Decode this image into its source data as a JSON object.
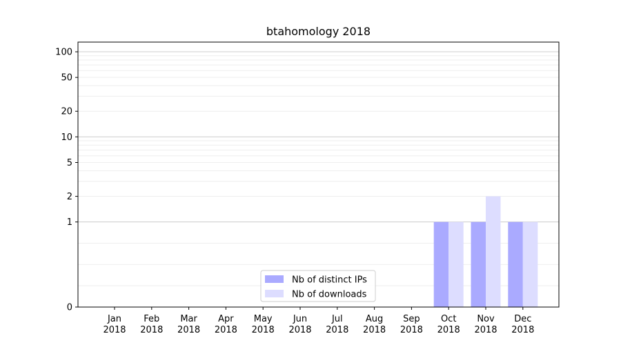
{
  "chart_data": {
    "type": "bar",
    "title": "btahomology 2018",
    "xlabel": "",
    "ylabel": "",
    "yscale": "symlog",
    "ylim": [
      0,
      130
    ],
    "yticks": [
      0,
      1,
      2,
      5,
      10,
      20,
      50,
      100
    ],
    "categories": [
      {
        "month": "Jan",
        "year": "2018"
      },
      {
        "month": "Feb",
        "year": "2018"
      },
      {
        "month": "Mar",
        "year": "2018"
      },
      {
        "month": "Apr",
        "year": "2018"
      },
      {
        "month": "May",
        "year": "2018"
      },
      {
        "month": "Jun",
        "year": "2018"
      },
      {
        "month": "Jul",
        "year": "2018"
      },
      {
        "month": "Aug",
        "year": "2018"
      },
      {
        "month": "Sep",
        "year": "2018"
      },
      {
        "month": "Oct",
        "year": "2018"
      },
      {
        "month": "Nov",
        "year": "2018"
      },
      {
        "month": "Dec",
        "year": "2018"
      }
    ],
    "series": [
      {
        "name": "Nb of distinct IPs",
        "color": "#aaaaff",
        "values": [
          0,
          0,
          0,
          0,
          0,
          0,
          0,
          0,
          0,
          1,
          1,
          1
        ]
      },
      {
        "name": "Nb of downloads",
        "color": "#ddddff",
        "values": [
          0,
          0,
          0,
          0,
          0,
          0,
          0,
          0,
          0,
          1,
          2,
          1
        ]
      }
    ],
    "grid": true,
    "legend_position": "bottom-center"
  }
}
